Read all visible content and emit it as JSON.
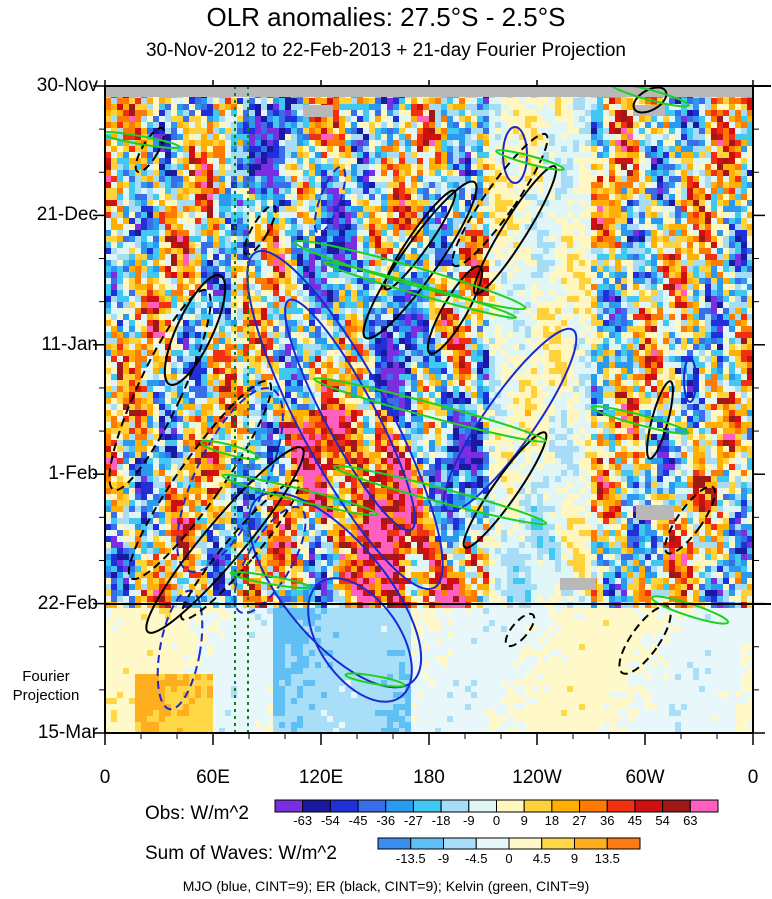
{
  "title": "OLR anomalies: 27.5°S - 2.5°S",
  "subtitle": "30-Nov-2012 to 22-Feb-2013 + 21-day Fourier Projection",
  "footer": "MJO (blue, CINT=9); ER (black, CINT=9); Kelvin (green, CINT=9)",
  "projection_label_line1": "Fourier",
  "projection_label_line2": "Projection",
  "colors": {
    "obs": [
      "#7a2ee0",
      "#1a1aa0",
      "#2030d8",
      "#3a6ee8",
      "#2a9af0",
      "#40c8f0",
      "#a6dcf5",
      "#e0f5f5",
      "#fff6c0",
      "#ffd23c",
      "#ffb000",
      "#ff7a00",
      "#f03010",
      "#d01010",
      "#a01818",
      "#ff60c0"
    ],
    "waves": [
      "#3a8ef0",
      "#60c0f5",
      "#a8def8",
      "#e8f8fa",
      "#fff8c8",
      "#ffd848",
      "#ffae20",
      "#ff7a10"
    ],
    "mjo": "#1a2ad0",
    "er": "#000000",
    "kelvin": "#20d020"
  },
  "chart_data": {
    "type": "heatmap",
    "title": "OLR anomalies: 27.5°S - 2.5°S",
    "subtitle": "30-Nov-2012 to 22-Feb-2013 + 21-day Fourier Projection",
    "x_tick_labels": [
      "0",
      "60E",
      "120E",
      "180",
      "120W",
      "60W",
      "0"
    ],
    "x_ticks_deg": [
      0,
      60,
      120,
      180,
      240,
      300,
      360
    ],
    "xlim": [
      0,
      360
    ],
    "y_tick_labels": [
      "30-Nov",
      "21-Dec",
      "11-Jan",
      "1-Feb",
      "22-Feb",
      "15-Mar"
    ],
    "time_range": [
      "30-Nov-2012",
      "15-Mar-2013"
    ],
    "observation_end": "22-Feb-2013",
    "obs_colorbar": {
      "label": "Obs: W/m^2",
      "ticks": [
        "-63",
        "-54",
        "-45",
        "-36",
        "-27",
        "-18",
        "-9",
        "0",
        "9",
        "18",
        "27",
        "36",
        "45",
        "54",
        "63"
      ]
    },
    "waves_colorbar": {
      "label": "Sum of Waves: W/m^2",
      "ticks": [
        "-13.5",
        "-9",
        "-4.5",
        "0",
        "4.5",
        "9",
        "13.5"
      ]
    },
    "contour_legend": "MJO (blue, CINT=9); ER (black, CINT=9); Kelvin (green, CINT=9)"
  }
}
